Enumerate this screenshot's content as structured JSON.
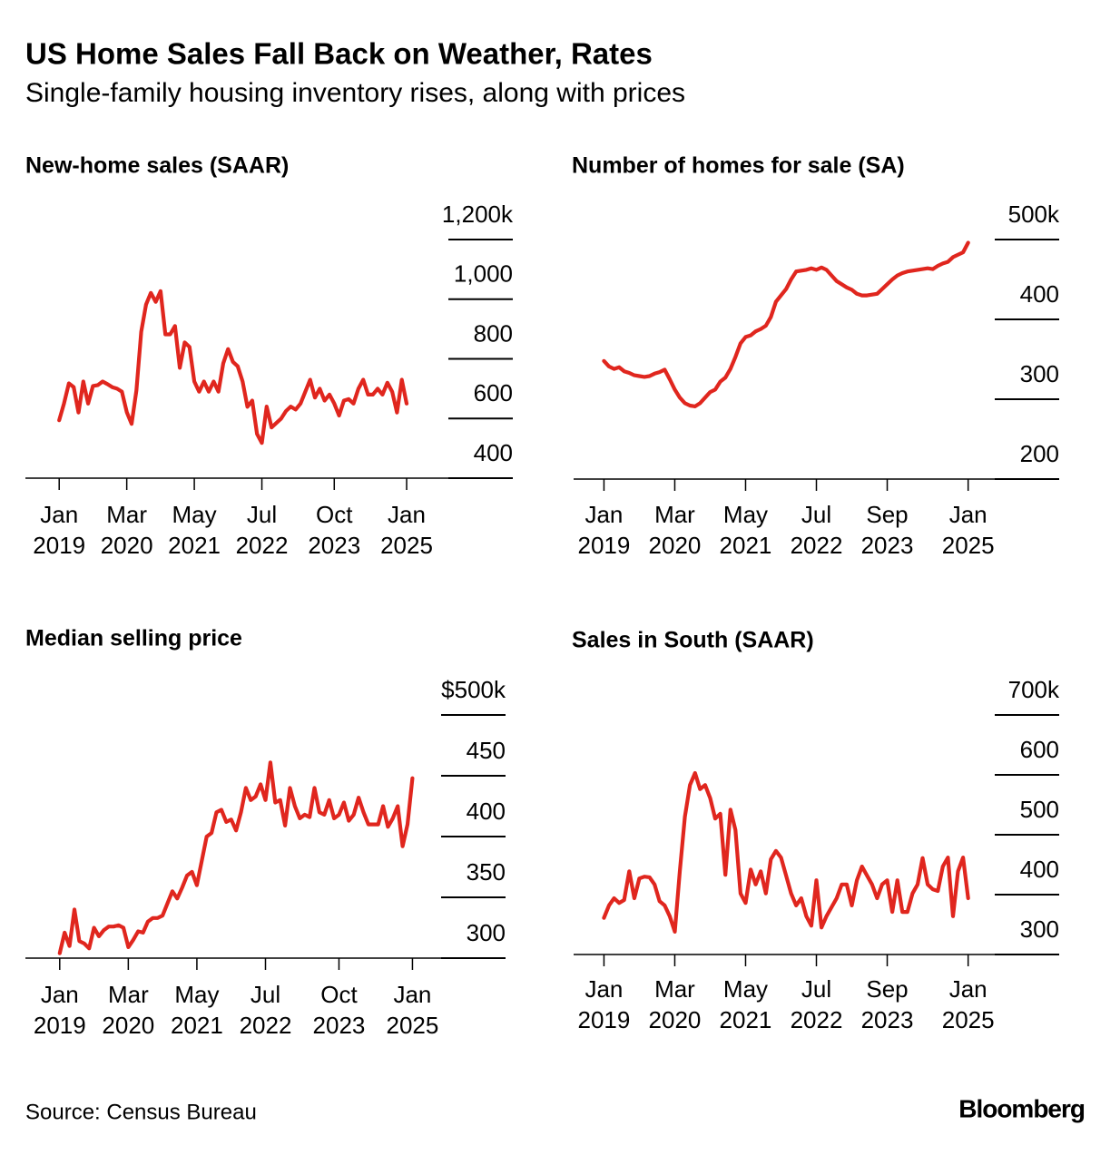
{
  "title": "US Home Sales Fall Back on Weather, Rates",
  "subtitle": "Single-family housing inventory rises, along with prices",
  "source": "Source: Census Bureau",
  "brand": "Bloomberg",
  "chart_data": [
    {
      "type": "line",
      "title": "New-home sales (SAAR)",
      "color": "#e0261e",
      "x": [
        "2019-01",
        "2019-02",
        "2019-03",
        "2019-04",
        "2019-05",
        "2019-06",
        "2019-07",
        "2019-08",
        "2019-09",
        "2019-10",
        "2019-11",
        "2019-12",
        "2020-01",
        "2020-02",
        "2020-03",
        "2020-04",
        "2020-05",
        "2020-06",
        "2020-07",
        "2020-08",
        "2020-09",
        "2020-10",
        "2020-11",
        "2020-12",
        "2021-01",
        "2021-02",
        "2021-03",
        "2021-04",
        "2021-05",
        "2021-06",
        "2021-07",
        "2021-08",
        "2021-09",
        "2021-10",
        "2021-11",
        "2021-12",
        "2022-01",
        "2022-02",
        "2022-03",
        "2022-04",
        "2022-05",
        "2022-06",
        "2022-07",
        "2022-08",
        "2022-09",
        "2022-10",
        "2022-11",
        "2022-12",
        "2023-01",
        "2023-02",
        "2023-03",
        "2023-04",
        "2023-05",
        "2023-06",
        "2023-07",
        "2023-08",
        "2023-09",
        "2023-10",
        "2023-11",
        "2023-12",
        "2024-01",
        "2024-02",
        "2024-03",
        "2024-04",
        "2024-05",
        "2024-06",
        "2024-07",
        "2024-08",
        "2024-09",
        "2024-10",
        "2024-11",
        "2024-12",
        "2025-01"
      ],
      "values": [
        594,
        650,
        718,
        705,
        620,
        724,
        650,
        709,
        712,
        724,
        715,
        705,
        700,
        690,
        621,
        582,
        694,
        891,
        982,
        1021,
        991,
        1027,
        882,
        882,
        910,
        770,
        855,
        840,
        724,
        690,
        724,
        690,
        724,
        690,
        785,
        833,
        790,
        775,
        724,
        639,
        660,
        548,
        518,
        640,
        570,
        585,
        600,
        625,
        640,
        630,
        650,
        690,
        730,
        670,
        700,
        660,
        680,
        650,
        610,
        660,
        665,
        650,
        700,
        730,
        680,
        680,
        700,
        680,
        720,
        690,
        620,
        730,
        650
      ],
      "xlim": [
        "2018-06",
        "2026-11"
      ],
      "xticks": [
        {
          "value": "2019-01",
          "label": "Jan 2019"
        },
        {
          "value": "2020-03",
          "label": "Mar 2020"
        },
        {
          "value": "2021-05",
          "label": "May 2021"
        },
        {
          "value": "2022-07",
          "label": "Jul 2022"
        },
        {
          "value": "2023-10",
          "label": "Oct 2023"
        },
        {
          "value": "2025-01",
          "label": "Jan 2025"
        }
      ],
      "ylim": [
        400,
        1200
      ],
      "yticks": [
        {
          "value": 1200,
          "label": "1,200k"
        },
        {
          "value": 1000,
          "label": "1,000"
        },
        800,
        600,
        400
      ]
    },
    {
      "type": "line",
      "title": "Number of homes for sale (SA)",
      "color": "#e0261e",
      "x": [
        "2019-01",
        "2019-02",
        "2019-03",
        "2019-04",
        "2019-05",
        "2019-06",
        "2019-07",
        "2019-08",
        "2019-09",
        "2019-10",
        "2019-11",
        "2019-12",
        "2020-01",
        "2020-02",
        "2020-03",
        "2020-04",
        "2020-05",
        "2020-06",
        "2020-07",
        "2020-08",
        "2020-09",
        "2020-10",
        "2020-11",
        "2020-12",
        "2021-01",
        "2021-02",
        "2021-03",
        "2021-04",
        "2021-05",
        "2021-06",
        "2021-07",
        "2021-08",
        "2021-09",
        "2021-10",
        "2021-11",
        "2021-12",
        "2022-01",
        "2022-02",
        "2022-03",
        "2022-04",
        "2022-05",
        "2022-06",
        "2022-07",
        "2022-08",
        "2022-09",
        "2022-10",
        "2022-11",
        "2022-12",
        "2023-01",
        "2023-02",
        "2023-03",
        "2023-04",
        "2023-05",
        "2023-06",
        "2023-07",
        "2023-08",
        "2023-09",
        "2023-10",
        "2023-11",
        "2023-12",
        "2024-01",
        "2024-02",
        "2024-03",
        "2024-04",
        "2024-05",
        "2024-06",
        "2024-07",
        "2024-08",
        "2024-09",
        "2024-10",
        "2024-11",
        "2024-12",
        "2025-01"
      ],
      "values": [
        348,
        341,
        338,
        340,
        335,
        333,
        330,
        329,
        328,
        329,
        332,
        334,
        337,
        325,
        312,
        302,
        295,
        292,
        291,
        295,
        302,
        309,
        312,
        322,
        327,
        338,
        353,
        370,
        378,
        380,
        385,
        388,
        392,
        403,
        422,
        430,
        438,
        450,
        460,
        461,
        462,
        464,
        462,
        465,
        462,
        455,
        448,
        444,
        440,
        437,
        432,
        430,
        430,
        431,
        432,
        438,
        444,
        450,
        455,
        458,
        460,
        461,
        462,
        463,
        464,
        463,
        467,
        470,
        472,
        478,
        481,
        484,
        496
      ],
      "xlim": [
        "2018-07",
        "2026-07"
      ],
      "xticks": [
        {
          "value": "2019-01",
          "label": "Jan 2019"
        },
        {
          "value": "2020-03",
          "label": "Mar 2020"
        },
        {
          "value": "2021-05",
          "label": "May 2021"
        },
        {
          "value": "2022-07",
          "label": "Jul 2022"
        },
        {
          "value": "2023-09",
          "label": "Sep 2023"
        },
        {
          "value": "2025-01",
          "label": "Jan 2025"
        }
      ],
      "ylim": [
        200,
        500
      ],
      "yticks": [
        {
          "value": 500,
          "label": "500k"
        },
        400,
        300,
        200
      ]
    },
    {
      "type": "line",
      "title": "Median selling price",
      "color": "#e0261e",
      "x": [
        "2019-01",
        "2019-02",
        "2019-03",
        "2019-04",
        "2019-05",
        "2019-06",
        "2019-07",
        "2019-08",
        "2019-09",
        "2019-10",
        "2019-11",
        "2019-12",
        "2020-01",
        "2020-02",
        "2020-03",
        "2020-04",
        "2020-05",
        "2020-06",
        "2020-07",
        "2020-08",
        "2020-09",
        "2020-10",
        "2020-11",
        "2020-12",
        "2021-01",
        "2021-02",
        "2021-03",
        "2021-04",
        "2021-05",
        "2021-06",
        "2021-07",
        "2021-08",
        "2021-09",
        "2021-10",
        "2021-11",
        "2021-12",
        "2022-01",
        "2022-02",
        "2022-03",
        "2022-04",
        "2022-05",
        "2022-06",
        "2022-07",
        "2022-08",
        "2022-09",
        "2022-10",
        "2022-11",
        "2022-12",
        "2023-01",
        "2023-02",
        "2023-03",
        "2023-04",
        "2023-05",
        "2023-06",
        "2023-07",
        "2023-08",
        "2023-09",
        "2023-10",
        "2023-11",
        "2023-12",
        "2024-01",
        "2024-02",
        "2024-03",
        "2024-04",
        "2024-05",
        "2024-06",
        "2024-07",
        "2024-08",
        "2024-09",
        "2024-10",
        "2024-11",
        "2024-12",
        "2025-01"
      ],
      "values": [
        304,
        321,
        310,
        340,
        314,
        312,
        308,
        325,
        318,
        323,
        326,
        326,
        327,
        325,
        309,
        315,
        322,
        321,
        330,
        333,
        333,
        335,
        345,
        355,
        349,
        358,
        368,
        371,
        360,
        380,
        400,
        403,
        420,
        422,
        412,
        414,
        405,
        420,
        440,
        430,
        433,
        443,
        430,
        461,
        428,
        430,
        409,
        440,
        425,
        415,
        418,
        416,
        440,
        420,
        418,
        430,
        415,
        418,
        428,
        413,
        418,
        432,
        420,
        410,
        410,
        410,
        425,
        408,
        415,
        425,
        392,
        410,
        448
      ],
      "xlim": [
        "2018-06",
        "2026-08"
      ],
      "xticks": [
        {
          "value": "2019-01",
          "label": "Jan 2019"
        },
        {
          "value": "2020-03",
          "label": "Mar 2020"
        },
        {
          "value": "2021-05",
          "label": "May 2021"
        },
        {
          "value": "2022-07",
          "label": "Jul 2022"
        },
        {
          "value": "2023-10",
          "label": "Oct 2023"
        },
        {
          "value": "2025-01",
          "label": "Jan 2025"
        }
      ],
      "ylim": [
        300,
        500
      ],
      "yticks": [
        {
          "value": 500,
          "label": "$500k"
        },
        450,
        400,
        350,
        300
      ]
    },
    {
      "type": "line",
      "title": "Sales in South (SAAR)",
      "color": "#e0261e",
      "x": [
        "2019-01",
        "2019-02",
        "2019-03",
        "2019-04",
        "2019-05",
        "2019-06",
        "2019-07",
        "2019-08",
        "2019-09",
        "2019-10",
        "2019-11",
        "2019-12",
        "2020-01",
        "2020-02",
        "2020-03",
        "2020-04",
        "2020-05",
        "2020-06",
        "2020-07",
        "2020-08",
        "2020-09",
        "2020-10",
        "2020-11",
        "2020-12",
        "2021-01",
        "2021-02",
        "2021-03",
        "2021-04",
        "2021-05",
        "2021-06",
        "2021-07",
        "2021-08",
        "2021-09",
        "2021-10",
        "2021-11",
        "2021-12",
        "2022-01",
        "2022-02",
        "2022-03",
        "2022-04",
        "2022-05",
        "2022-06",
        "2022-07",
        "2022-08",
        "2022-09",
        "2022-10",
        "2022-11",
        "2022-12",
        "2023-01",
        "2023-02",
        "2023-03",
        "2023-04",
        "2023-05",
        "2023-06",
        "2023-07",
        "2023-08",
        "2023-09",
        "2023-10",
        "2023-11",
        "2023-12",
        "2024-01",
        "2024-02",
        "2024-03",
        "2024-04",
        "2024-05",
        "2024-06",
        "2024-07",
        "2024-08",
        "2024-09",
        "2024-10",
        "2024-11",
        "2024-12",
        "2025-01"
      ],
      "values": [
        361,
        382,
        394,
        386,
        391,
        439,
        394,
        427,
        430,
        429,
        417,
        389,
        382,
        364,
        338,
        439,
        530,
        583,
        603,
        576,
        583,
        561,
        527,
        535,
        433,
        542,
        508,
        402,
        386,
        442,
        417,
        439,
        402,
        459,
        473,
        462,
        432,
        402,
        382,
        394,
        364,
        348,
        424,
        345,
        364,
        379,
        394,
        417,
        417,
        382,
        424,
        447,
        432,
        417,
        394,
        417,
        424,
        371,
        424,
        371,
        371,
        402,
        417,
        461,
        417,
        409,
        406,
        447,
        462,
        364,
        439,
        462,
        394
      ],
      "xlim": [
        "2018-07",
        "2026-07"
      ],
      "xticks": [
        {
          "value": "2019-01",
          "label": "Jan 2019"
        },
        {
          "value": "2020-03",
          "label": "Mar 2020"
        },
        {
          "value": "2021-05",
          "label": "May 2021"
        },
        {
          "value": "2022-07",
          "label": "Jul 2022"
        },
        {
          "value": "2023-09",
          "label": "Sep 2023"
        },
        {
          "value": "2025-01",
          "label": "Jan 2025"
        }
      ],
      "ylim": [
        300,
        700
      ],
      "yticks": [
        {
          "value": 700,
          "label": "700k"
        },
        600,
        500,
        400,
        300
      ]
    }
  ]
}
